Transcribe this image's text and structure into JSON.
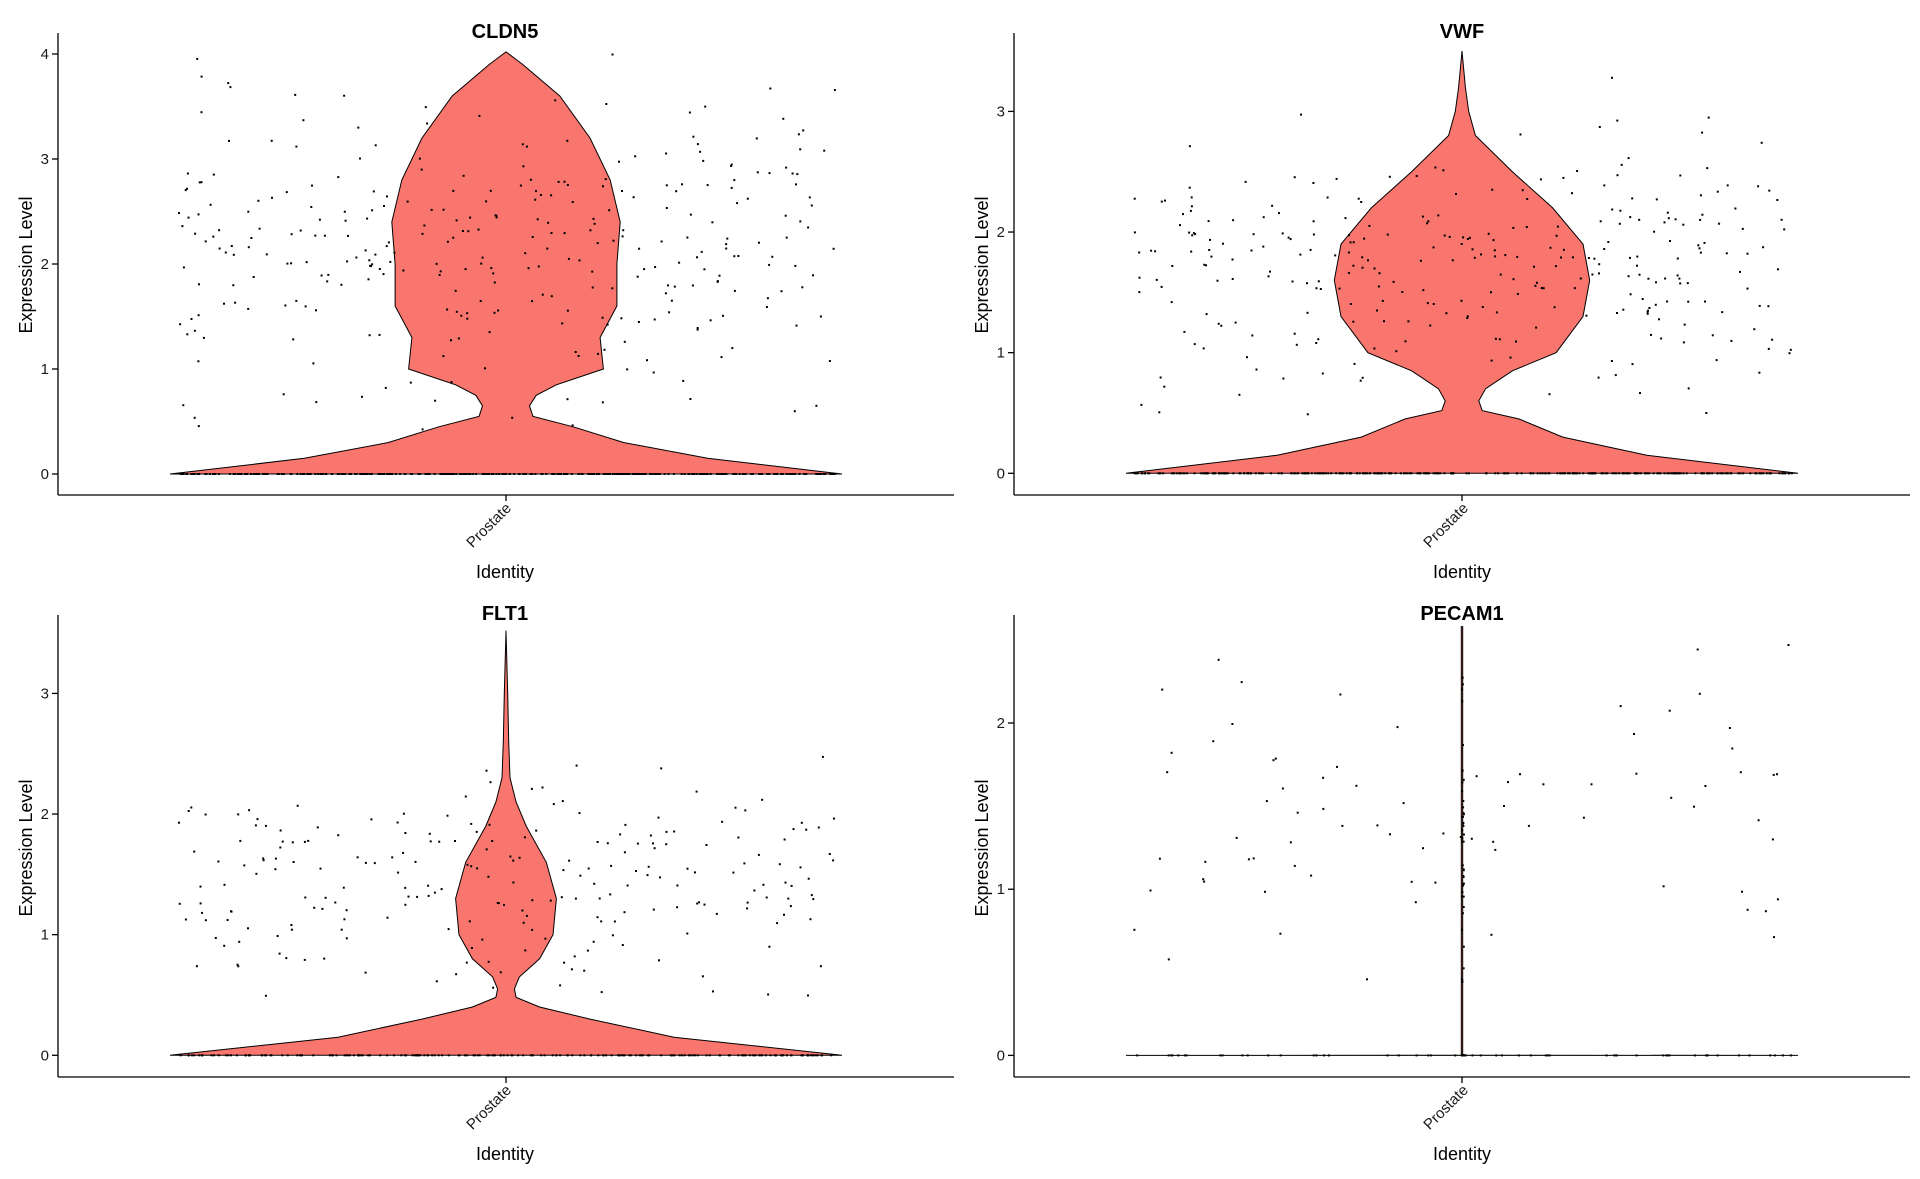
{
  "colors": {
    "violin_fill": "#F8766D",
    "violin_stroke": "#000000",
    "point": "#000000",
    "axis": "#000000"
  },
  "chart_data": [
    {
      "type": "violin",
      "title": "CLDN5",
      "xlabel": "Identity",
      "ylabel": "Expression Level",
      "categories": [
        "Prostate"
      ],
      "yticks": [
        0,
        1,
        2,
        3,
        4
      ],
      "ylim": [
        -0.2,
        4.2
      ],
      "ymax": 4.02,
      "grid": false,
      "legend": "none",
      "profile": [
        [
          0,
          1.0
        ],
        [
          0.15,
          0.6
        ],
        [
          0.3,
          0.35
        ],
        [
          0.45,
          0.2
        ],
        [
          0.55,
          0.08
        ],
        [
          0.65,
          0.07
        ],
        [
          0.75,
          0.09
        ],
        [
          0.85,
          0.15
        ],
        [
          1.0,
          0.29
        ],
        [
          1.3,
          0.28
        ],
        [
          1.6,
          0.33
        ],
        [
          2.0,
          0.33
        ],
        [
          2.4,
          0.34
        ],
        [
          2.8,
          0.31
        ],
        [
          3.2,
          0.25
        ],
        [
          3.6,
          0.16
        ],
        [
          3.9,
          0.05
        ],
        [
          4.02,
          0.0
        ]
      ],
      "points": {
        "count": 700,
        "zero_fraction": 0.55,
        "mean": 2.15,
        "sd": 0.7,
        "max": 4.02
      }
    },
    {
      "type": "violin",
      "title": "VWF",
      "xlabel": "Identity",
      "ylabel": "Expression Level",
      "categories": [
        "Prostate"
      ],
      "yticks": [
        0,
        1,
        2,
        3
      ],
      "ylim": [
        -0.18,
        3.65
      ],
      "ymax": 3.5,
      "grid": false,
      "legend": "none",
      "profile": [
        [
          0,
          1.0
        ],
        [
          0.15,
          0.55
        ],
        [
          0.3,
          0.3
        ],
        [
          0.45,
          0.17
        ],
        [
          0.52,
          0.06
        ],
        [
          0.6,
          0.05
        ],
        [
          0.7,
          0.07
        ],
        [
          0.85,
          0.15
        ],
        [
          1.0,
          0.28
        ],
        [
          1.3,
          0.36
        ],
        [
          1.6,
          0.38
        ],
        [
          1.9,
          0.36
        ],
        [
          2.2,
          0.27
        ],
        [
          2.5,
          0.15
        ],
        [
          2.8,
          0.04
        ],
        [
          3.0,
          0.02
        ],
        [
          3.2,
          0.01
        ],
        [
          3.5,
          0.0
        ]
      ],
      "points": {
        "count": 600,
        "zero_fraction": 0.5,
        "mean": 1.7,
        "sd": 0.5,
        "max": 3.5
      }
    },
    {
      "type": "violin",
      "title": "FLT1",
      "xlabel": "Identity",
      "ylabel": "Expression Level",
      "categories": [
        "Prostate"
      ],
      "yticks": [
        0,
        1,
        2,
        3
      ],
      "ylim": [
        -0.18,
        3.65
      ],
      "ymax": 3.52,
      "grid": false,
      "legend": "none",
      "profile": [
        [
          0,
          1.0
        ],
        [
          0.15,
          0.5
        ],
        [
          0.3,
          0.25
        ],
        [
          0.4,
          0.1
        ],
        [
          0.48,
          0.03
        ],
        [
          0.55,
          0.025
        ],
        [
          0.65,
          0.04
        ],
        [
          0.8,
          0.1
        ],
        [
          1.0,
          0.14
        ],
        [
          1.3,
          0.15
        ],
        [
          1.6,
          0.12
        ],
        [
          1.9,
          0.06
        ],
        [
          2.1,
          0.03
        ],
        [
          2.3,
          0.012
        ],
        [
          2.6,
          0.008
        ],
        [
          3.0,
          0.005
        ],
        [
          3.52,
          0.0
        ]
      ],
      "points": {
        "count": 420,
        "zero_fraction": 0.45,
        "mean": 1.4,
        "sd": 0.45,
        "max": 3.52
      }
    },
    {
      "type": "violin",
      "title": "PECAM1",
      "xlabel": "Identity",
      "ylabel": "Expression Level",
      "categories": [
        "Prostate"
      ],
      "yticks": [
        0,
        1,
        2
      ],
      "ylim": [
        -0.13,
        2.65
      ],
      "ymax": 2.58,
      "grid": false,
      "legend": "none",
      "profile": [
        [
          0,
          1.0
        ],
        [
          0.001,
          0.002
        ],
        [
          2.58,
          0.002
        ]
      ],
      "points": {
        "count": 200,
        "zero_fraction": 0.4,
        "mean": 1.45,
        "sd": 0.45,
        "max": 2.58
      }
    }
  ]
}
